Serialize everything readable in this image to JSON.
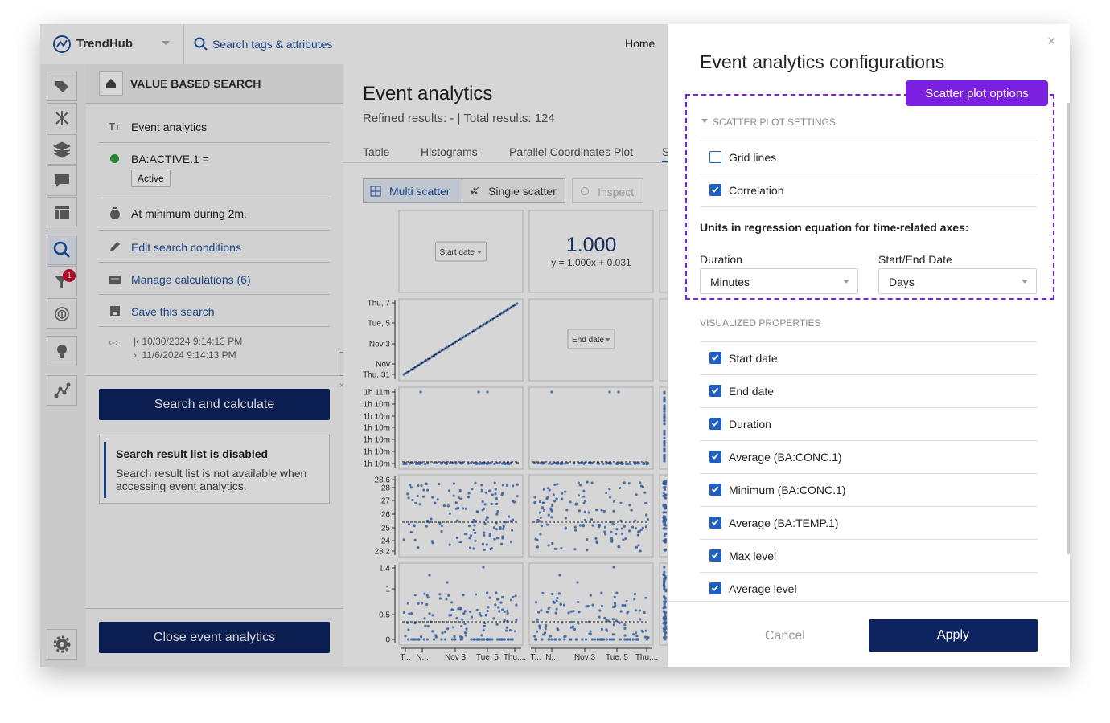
{
  "header": {
    "brand": "TrendHub",
    "search_placeholder": "Search tags & attributes",
    "nav_home": "Home"
  },
  "rail": {
    "notification_count": "1"
  },
  "search_panel": {
    "title": "VALUE BASED SEARCH",
    "name": "Event analytics",
    "condition": "BA:ACTIVE.1 =",
    "condition_value": "Active",
    "duration_rule": "At minimum during 2m.",
    "actions": [
      "Edit search conditions",
      "Manage calculations (6)",
      "Save this search"
    ],
    "range_start": "10/30/2024 9:14:13 PM",
    "range_end": "11/6/2024 9:14:13 PM",
    "search_button": "Search and calculate",
    "notice": {
      "title": "Search result list is disabled",
      "text": "Search result list is not available when accessing event analytics."
    },
    "close_button": "Close event analytics"
  },
  "main": {
    "title": "Event analytics",
    "summary": "Refined results: - | Total results: 124",
    "tabs": [
      "Table",
      "Histograms",
      "Parallel Coordinates Plot",
      "S"
    ],
    "modes": [
      "Multi scatter",
      "Single scatter"
    ],
    "inspect": "Inspect",
    "matrix": {
      "axis_selectors": [
        "Start date",
        "End date"
      ],
      "correlation": "1.000",
      "equation": "y = 1.000x + 0.031",
      "row_labels": [
        [
          "Thu, 7",
          "Tue, 5",
          "Nov 3",
          "Nov",
          "Thu, 31"
        ],
        [
          "1h 11m",
          "1h 10m",
          "1h 10m",
          "1h 10m",
          "1h 10m",
          "1h 10m",
          "1h 10m"
        ],
        [
          "28.6",
          "28",
          "27",
          "26",
          "25",
          "24",
          "23.2"
        ],
        [
          "1.4",
          "1",
          "0.5",
          "0"
        ]
      ],
      "column_labels": [
        [
          "T...",
          "N...",
          "Nov 3",
          "Tue, 5",
          "Thu,..."
        ],
        [
          "T...",
          "N...",
          "Nov 3",
          "Tue, 5",
          "Thu,..."
        ]
      ]
    }
  },
  "modal": {
    "close": "×",
    "title": "Event analytics configurations",
    "badge": "Scatter plot options",
    "settings": {
      "heading": "SCATTER PLOT SETTINGS",
      "options": [
        {
          "label": "Grid lines",
          "checked": false
        },
        {
          "label": "Correlation",
          "checked": true
        }
      ],
      "units_heading": "Units in regression equation for time-related axes:",
      "duration_label": "Duration",
      "duration_value": "Minutes",
      "date_label": "Start/End Date",
      "date_value": "Days"
    },
    "properties": {
      "heading": "VISUALIZED PROPERTIES",
      "items": [
        {
          "label": "Start date",
          "checked": true
        },
        {
          "label": "End date",
          "checked": true
        },
        {
          "label": "Duration",
          "checked": true
        },
        {
          "label": "Average (BA:CONC.1)",
          "checked": true
        },
        {
          "label": "Minimum (BA:CONC.1)",
          "checked": true
        },
        {
          "label": "Average (BA:TEMP.1)",
          "checked": true
        },
        {
          "label": "Max level",
          "checked": true
        },
        {
          "label": "Average level",
          "checked": true
        }
      ]
    },
    "cancel": "Cancel",
    "apply": "Apply"
  }
}
